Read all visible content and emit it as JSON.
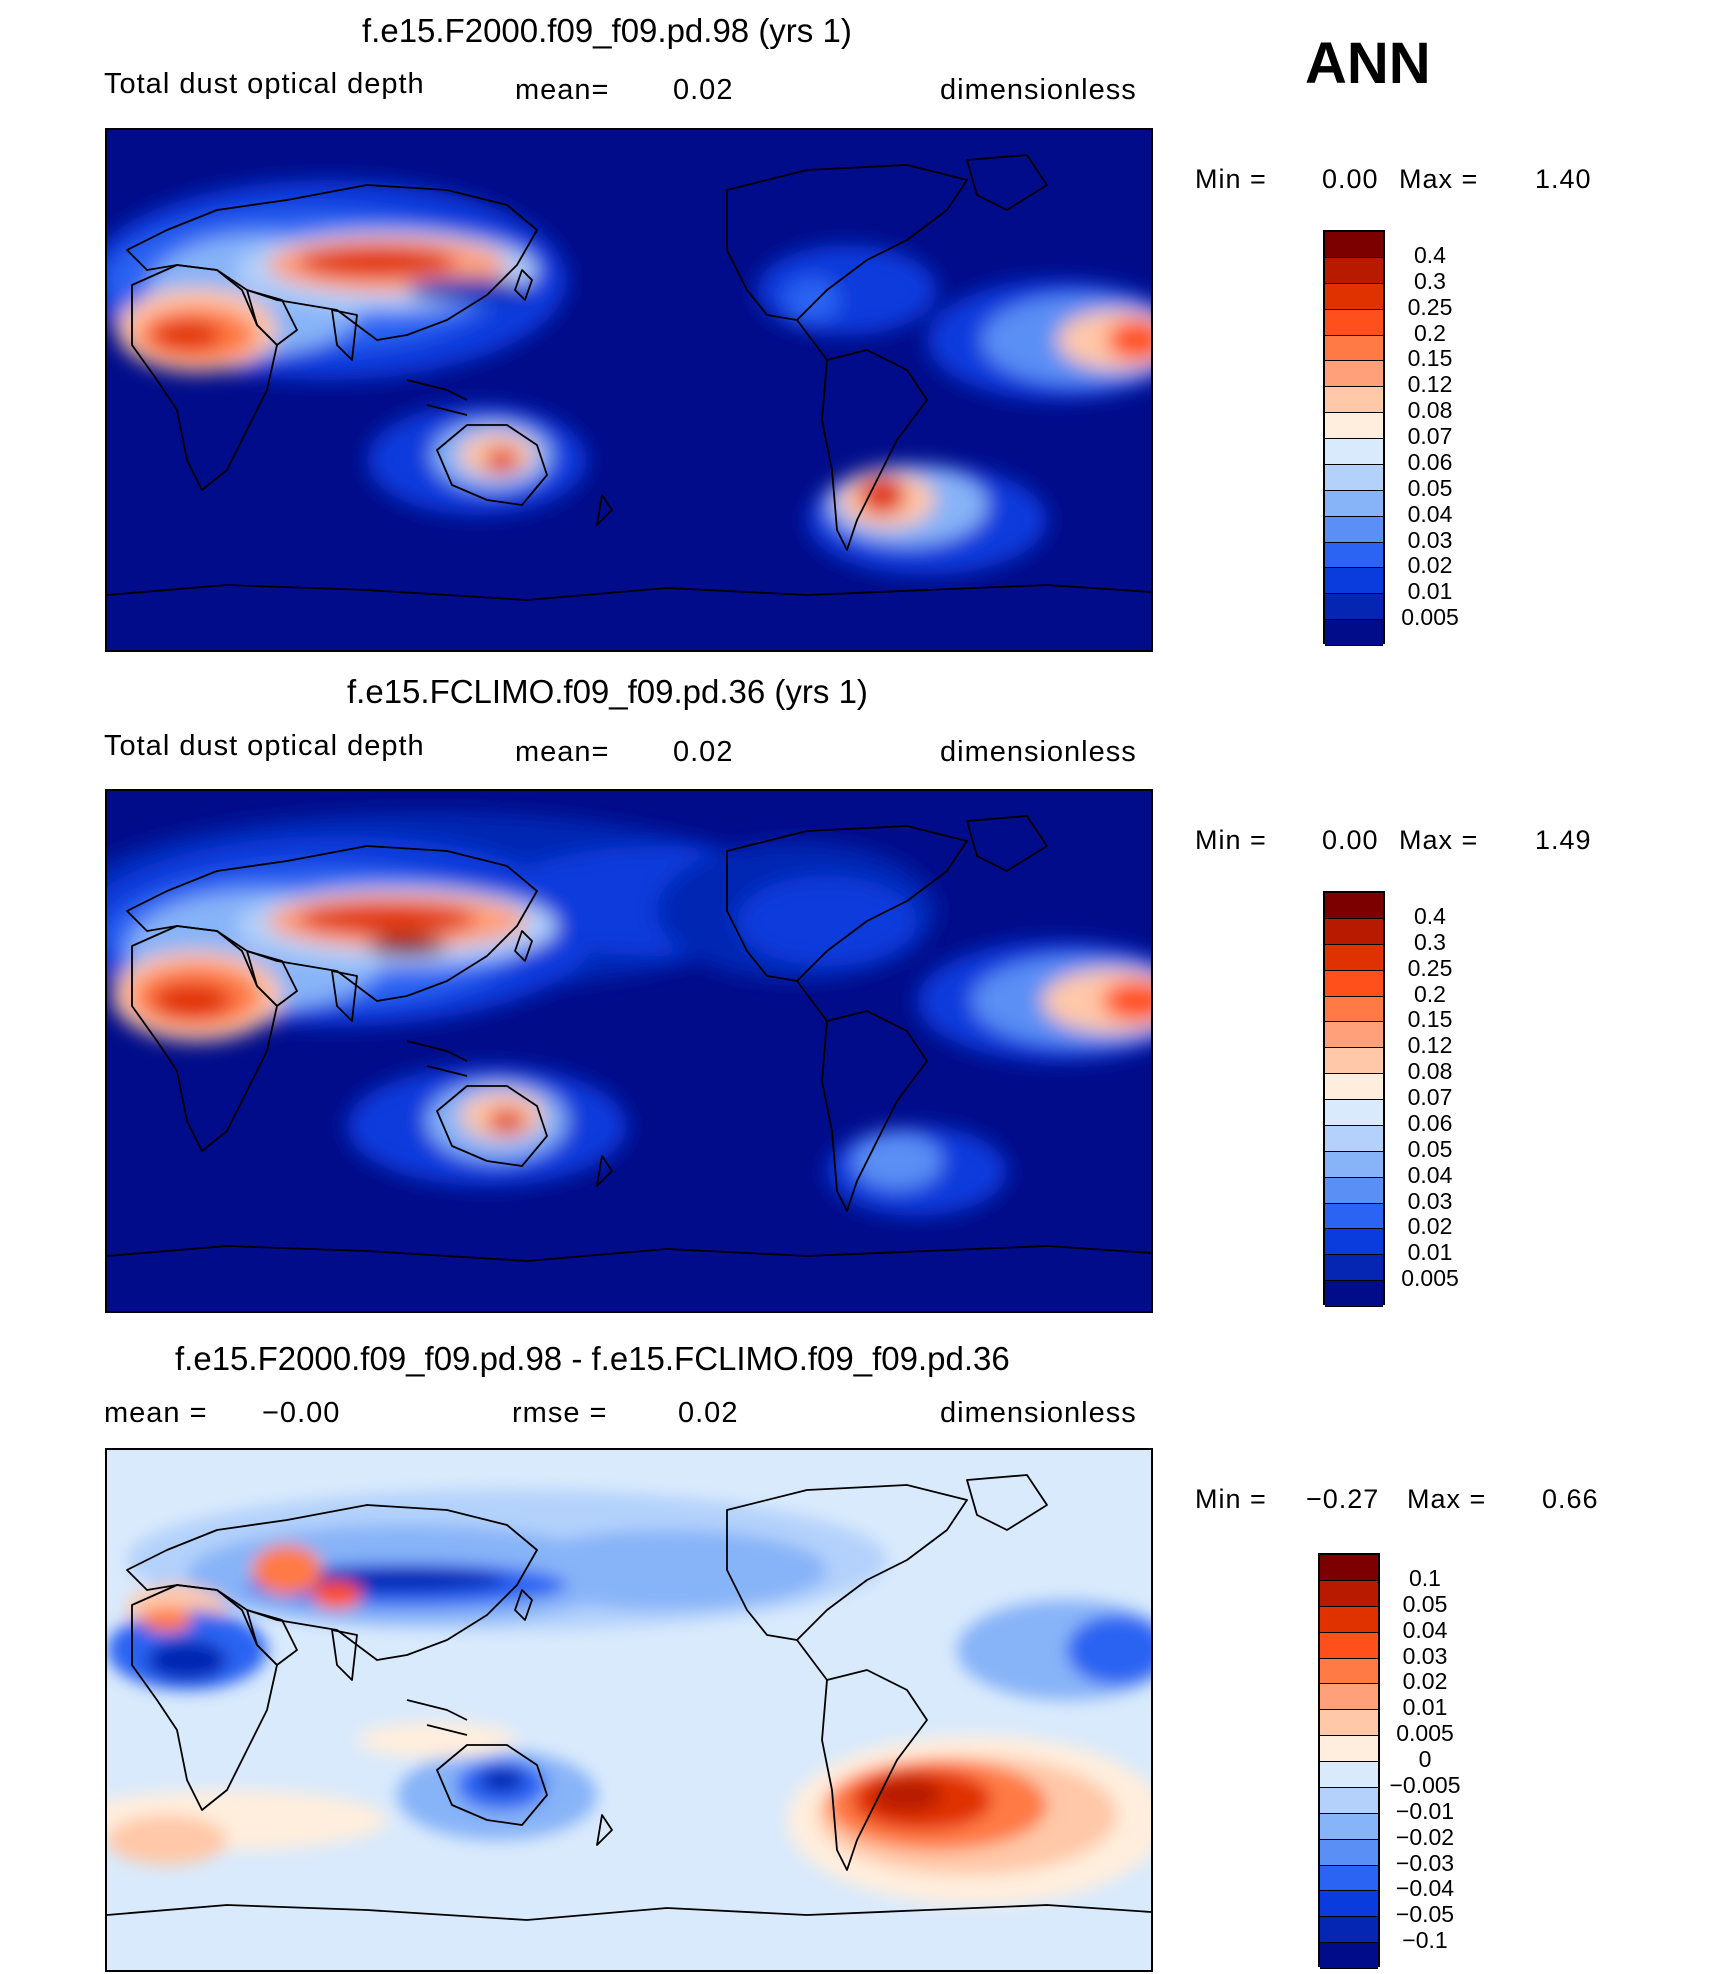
{
  "season": "ANN",
  "panels": [
    {
      "title": "f.e15.F2000.f09_f09.pd.98 (yrs 1)",
      "left_label": "Total dust optical depth",
      "mean_label": "mean=",
      "mean_value": "0.02",
      "units": "dimensionless",
      "min_label": "Min =",
      "min_value": "0.00",
      "max_label": "Max =",
      "max_value": "1.40",
      "colorbar": {
        "labels": [
          "0.4",
          "0.3",
          "0.25",
          "0.2",
          "0.15",
          "0.12",
          "0.08",
          "0.07",
          "0.06",
          "0.05",
          "0.04",
          "0.03",
          "0.02",
          "0.01",
          "0.005"
        ],
        "colors": [
          "#7d0000",
          "#b81a00",
          "#e03200",
          "#ff4f1a",
          "#ff7a45",
          "#ffa07a",
          "#ffc8a8",
          "#ffeedd",
          "#d9eafc",
          "#b3d1fb",
          "#87b3f8",
          "#5a8ff5",
          "#2b63f2",
          "#0a3bdc",
          "#0525b3",
          "#000c8a"
        ]
      }
    },
    {
      "title": "f.e15.FCLIMO.f09_f09.pd.36 (yrs 1)",
      "left_label": "Total dust optical depth",
      "mean_label": "mean=",
      "mean_value": "0.02",
      "units": "dimensionless",
      "min_label": "Min =",
      "min_value": "0.00",
      "max_label": "Max =",
      "max_value": "1.49",
      "colorbar": {
        "labels": [
          "0.4",
          "0.3",
          "0.25",
          "0.2",
          "0.15",
          "0.12",
          "0.08",
          "0.07",
          "0.06",
          "0.05",
          "0.04",
          "0.03",
          "0.02",
          "0.01",
          "0.005"
        ],
        "colors": [
          "#7d0000",
          "#b81a00",
          "#e03200",
          "#ff4f1a",
          "#ff7a45",
          "#ffa07a",
          "#ffc8a8",
          "#ffeedd",
          "#d9eafc",
          "#b3d1fb",
          "#87b3f8",
          "#5a8ff5",
          "#2b63f2",
          "#0a3bdc",
          "#0525b3",
          "#000c8a"
        ]
      }
    },
    {
      "title": "f.e15.F2000.f09_f09.pd.98 - f.e15.FCLIMO.f09_f09.pd.36",
      "left_label": "mean =",
      "left_value": "−0.00",
      "mean_label": "rmse =",
      "mean_value": "0.02",
      "units": "dimensionless",
      "min_label": "Min =",
      "min_value": "−0.27",
      "max_label": "Max =",
      "max_value": "0.66",
      "colorbar": {
        "labels": [
          "0.1",
          "0.05",
          "0.04",
          "0.03",
          "0.02",
          "0.01",
          "0.005",
          "0",
          "−0.005",
          "−0.01",
          "−0.02",
          "−0.03",
          "−0.04",
          "−0.05",
          "−0.1"
        ],
        "colors": [
          "#7d0000",
          "#b81a00",
          "#e03200",
          "#ff4f1a",
          "#ff7a45",
          "#ffa07a",
          "#ffc8a8",
          "#ffeedd",
          "#d9eafc",
          "#b3d1fb",
          "#87b3f8",
          "#5a8ff5",
          "#2b63f2",
          "#0a3bdc",
          "#0525b3",
          "#000c8a"
        ]
      }
    }
  ]
}
